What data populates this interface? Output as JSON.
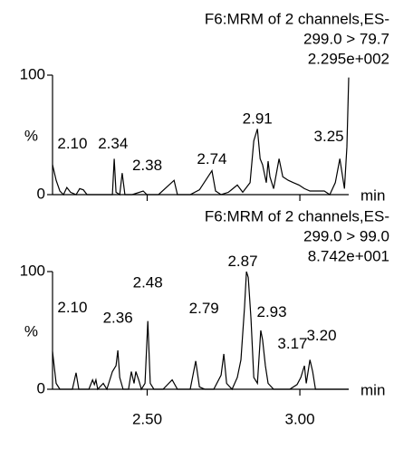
{
  "chart_data": [
    {
      "type": "line",
      "header_lines": [
        "F6:MRM of 2 channels,ES-",
        "299.0 > 79.7",
        "2.295e+002"
      ],
      "ylabel": "%",
      "xlabel": "min",
      "color": "#000000",
      "xlim": [
        2.19,
        3.16
      ],
      "xticks": [
        2.5,
        3.0
      ],
      "ylim": [
        0,
        100
      ],
      "yticks": [
        0,
        100
      ],
      "x": [
        2.19,
        2.202,
        2.214,
        2.226,
        2.237,
        2.249,
        2.267,
        2.279,
        2.291,
        2.303,
        2.327,
        2.35,
        2.374,
        2.386,
        2.392,
        2.398,
        2.41,
        2.418,
        2.427,
        2.451,
        2.487,
        2.499,
        2.537,
        2.588,
        2.599,
        2.641,
        2.671,
        2.712,
        2.724,
        2.742,
        2.766,
        2.795,
        2.813,
        2.837,
        2.849,
        2.861,
        2.87,
        2.878,
        2.89,
        2.896,
        2.902,
        2.914,
        2.932,
        2.944,
        2.962,
        2.979,
        2.997,
        3.015,
        3.033,
        3.057,
        3.08,
        3.098,
        3.116,
        3.131,
        3.146,
        3.154,
        3.16
      ],
      "values": [
        25,
        12,
        3,
        0,
        6,
        2,
        0,
        5,
        4,
        0,
        0,
        0,
        0,
        0,
        30,
        2,
        0,
        18,
        0,
        0,
        3,
        0,
        0,
        12,
        0,
        0,
        4,
        20,
        3,
        0,
        2,
        8,
        2,
        10,
        45,
        55,
        30,
        25,
        10,
        28,
        15,
        5,
        30,
        15,
        12,
        10,
        8,
        5,
        3,
        3,
        3,
        0,
        10,
        30,
        5,
        40,
        98
      ],
      "annotations": [
        {
          "text": "2.10",
          "x": 2.255,
          "y": 42
        },
        {
          "text": "2.34",
          "x": 2.388,
          "y": 42
        },
        {
          "text": "2.38",
          "x": 2.5,
          "y": 24
        },
        {
          "text": "2.74",
          "x": 2.712,
          "y": 29
        },
        {
          "text": "2.91",
          "x": 2.861,
          "y": 63
        },
        {
          "text": "3.25",
          "x": 3.095,
          "y": 48
        }
      ]
    },
    {
      "type": "line",
      "header_lines": [
        "F6:MRM of 2 channels,ES-",
        "299.0 > 99.0",
        "8.742e+001"
      ],
      "ylabel": "%",
      "xlabel": "min",
      "color": "#000000",
      "xlim": [
        2.19,
        3.16
      ],
      "xticks": [
        {
          "value": 2.5,
          "label": "2.50"
        },
        {
          "value": 3.0,
          "label": "3.00"
        }
      ],
      "ylim": [
        0,
        100
      ],
      "yticks": [
        0,
        100
      ],
      "x": [
        2.19,
        2.202,
        2.214,
        2.255,
        2.267,
        2.276,
        2.309,
        2.321,
        2.327,
        2.332,
        2.338,
        2.356,
        2.368,
        2.386,
        2.398,
        2.404,
        2.41,
        2.421,
        2.439,
        2.448,
        2.457,
        2.463,
        2.472,
        2.481,
        2.493,
        2.502,
        2.51,
        2.522,
        2.552,
        2.582,
        2.599,
        2.641,
        2.659,
        2.671,
        2.689,
        2.718,
        2.742,
        2.751,
        2.76,
        2.778,
        2.795,
        2.807,
        2.819,
        2.825,
        2.831,
        2.84,
        2.849,
        2.861,
        2.872,
        2.878,
        2.887,
        2.896,
        2.914,
        2.967,
        2.991,
        3.003,
        3.015,
        3.021,
        3.033,
        3.042,
        3.051,
        3.16
      ],
      "values": [
        32,
        5,
        0,
        0,
        14,
        0,
        0,
        8,
        4,
        8,
        0,
        5,
        0,
        15,
        20,
        33,
        10,
        0,
        0,
        15,
        5,
        15,
        8,
        0,
        5,
        58,
        5,
        0,
        0,
        8,
        0,
        0,
        24,
        2,
        0,
        0,
        12,
        30,
        5,
        0,
        10,
        25,
        70,
        100,
        95,
        60,
        10,
        5,
        50,
        42,
        20,
        5,
        0,
        0,
        4,
        10,
        20,
        5,
        25,
        15,
        0,
        0
      ],
      "annotations": [
        {
          "text": "2.10",
          "x": 2.255,
          "y": 69
        },
        {
          "text": "2.36",
          "x": 2.404,
          "y": 60
        },
        {
          "text": "2.48",
          "x": 2.502,
          "y": 90
        },
        {
          "text": "2.79",
          "x": 2.686,
          "y": 68
        },
        {
          "text": "2.87",
          "x": 2.813,
          "y": 108
        },
        {
          "text": "2.93",
          "x": 2.908,
          "y": 65
        },
        {
          "text": "3.17",
          "x": 2.976,
          "y": 38
        },
        {
          "text": "3.20",
          "x": 3.071,
          "y": 45
        }
      ]
    }
  ]
}
